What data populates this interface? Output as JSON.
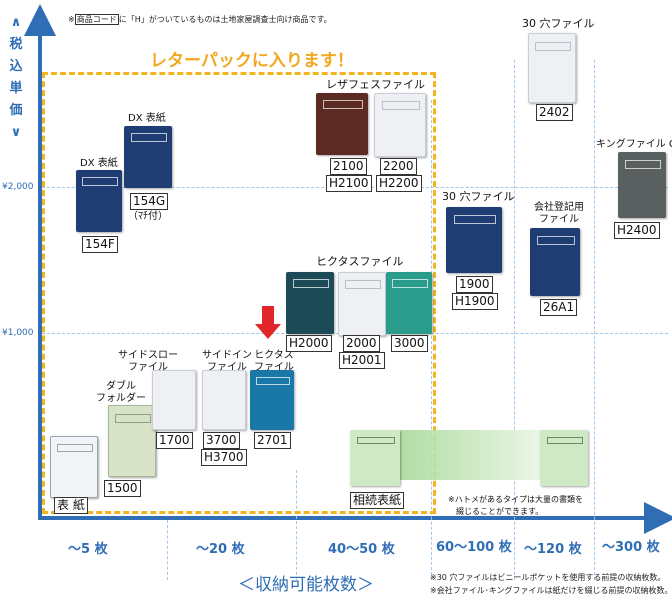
{
  "chart_data": {
    "type": "scatter",
    "title": "",
    "xlabel": "＜収納可能枚数＞",
    "ylabel": "＜税込単価＞",
    "y_axis": {
      "ticks": [
        "¥1,000",
        "¥2,000"
      ]
    },
    "x_categories": [
      "～5 枚",
      "～20 枚",
      "40～50 枚",
      "60～100 枚",
      "～120 枚",
      "～300 枚"
    ],
    "annotations": {
      "top_note_prefix": "※",
      "top_note_boxed": "商品コード",
      "top_note_suffix": "に「H」がついているものは土地家屋調査士向け商品です。",
      "letter_pack": "レターパックに入ります！",
      "hatome_note_line1": "※ハトメがあるタイプは大量の書類を",
      "hatome_note_line2": "綴じることができます。",
      "bottom_note_1": "※30 穴ファイルはビニールポケットを使用する前提の収納枚数。",
      "bottom_note_2": "※会社ファイル･キングファイルは紙だけを綴じる前提の収納枚数。"
    },
    "products": [
      {
        "name": "表 紙",
        "codes": [],
        "category": "～5 枚",
        "color": "#dfe6ef"
      },
      {
        "name": "ダブル\nフォルダー",
        "codes": [
          "1500"
        ],
        "category": "～5 枚",
        "color": "#c9d8b8"
      },
      {
        "name": "DX 表紙",
        "codes": [
          "154F"
        ],
        "category": "～5 枚",
        "color": "#1f3d73"
      },
      {
        "name": "DX 表紙",
        "codes": [
          "154G"
        ],
        "sub": "（ﾏﾁ付）",
        "category": "～20 枚",
        "color": "#1f3d73"
      },
      {
        "name": "サイドスロー\nファイル",
        "codes": [
          "1700"
        ],
        "category": "～20 枚",
        "color": "#eef0f3"
      },
      {
        "name": "サイドイン\nファイル",
        "codes": [
          "3700",
          "H3700"
        ],
        "category": "～20 枚",
        "color": "#eef0f3"
      },
      {
        "name": "ヒクタス\nファイル",
        "codes": [
          "2701"
        ],
        "category": "～20 枚",
        "color": "#1a78a8"
      },
      {
        "name": "ヒクタスファイル",
        "codes": [
          "H2000",
          "2000",
          "H2001",
          "3000"
        ],
        "category": "40～50 枚",
        "colors": [
          "#1d4a57",
          "#eef0f3",
          "#2a9c8c"
        ]
      },
      {
        "name": "レザフェスファイル",
        "codes": [
          "2100",
          "H2100",
          "2200",
          "H2200"
        ],
        "category": "40～50 枚",
        "colors": [
          "#5b2a22",
          "#eef0f3"
        ]
      },
      {
        "name": "30 穴ファイル",
        "codes": [
          "1900",
          "H1900"
        ],
        "category": "60～100 枚",
        "color": "#1f3d73"
      },
      {
        "name": "相続表紙",
        "codes": [],
        "category": "60～100 枚",
        "color": "#cfe8c6"
      },
      {
        "name": "30 穴ファイル",
        "codes": [
          "2402"
        ],
        "category": "～120 枚",
        "color": "#eef0f3"
      },
      {
        "name": "会社登記用\nファイル",
        "codes": [
          "26A1"
        ],
        "category": "～120 枚",
        "color": "#1f3d73"
      },
      {
        "name": "キングファイル G",
        "codes": [
          "H2400"
        ],
        "category": "～300 枚",
        "color": "#5a5f5f"
      }
    ]
  }
}
